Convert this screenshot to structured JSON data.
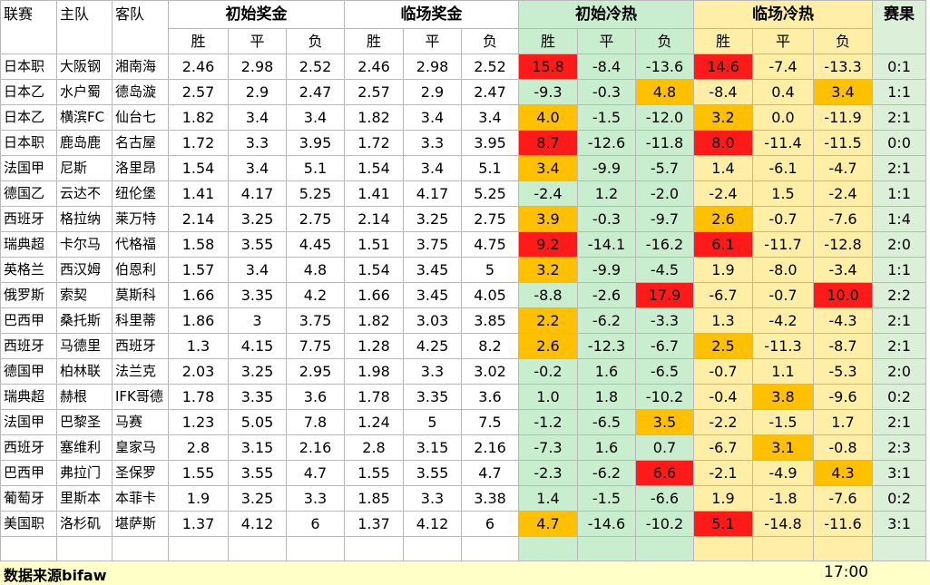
{
  "header": {
    "league": "联赛",
    "home": "主队",
    "away": "客队",
    "initial_odds": "初始奖金",
    "closing_odds": "临场奖金",
    "initial_heat": "初始冷热",
    "closing_heat": "临场冷热",
    "result": "赛果",
    "win": "胜",
    "draw": "平",
    "lose": "负"
  },
  "colors": {
    "red": "#ff1a1a",
    "orange": "#ffc000",
    "green_bg": "#c9eecf",
    "yellow_bg": "#ffeea6",
    "footer_bg": "#ffffc8"
  },
  "rows": [
    {
      "league": "日本职",
      "home": "大阪钢",
      "away": "湘南海",
      "io": [
        "2.46",
        "2.98",
        "2.52"
      ],
      "co": [
        "2.46",
        "2.98",
        "2.52"
      ],
      "ih": [
        "15.8",
        "-8.4",
        "-13.6"
      ],
      "ch": [
        "14.6",
        "-7.4",
        "-13.3"
      ],
      "result": "0:1",
      "ihc": [
        "r",
        "",
        ""
      ],
      "chc": [
        "r",
        "",
        ""
      ]
    },
    {
      "league": "日本乙",
      "home": "水户蜀",
      "away": "德岛漩",
      "io": [
        "2.57",
        "2.9",
        "2.47"
      ],
      "co": [
        "2.57",
        "2.9",
        "2.47"
      ],
      "ih": [
        "-9.3",
        "-0.3",
        "4.8"
      ],
      "ch": [
        "-8.4",
        "0.4",
        "3.4"
      ],
      "result": "1:1",
      "ihc": [
        "",
        "",
        "o"
      ],
      "chc": [
        "",
        "",
        "o"
      ]
    },
    {
      "league": "日本乙",
      "home": "横滨FC",
      "away": "仙台七",
      "io": [
        "1.82",
        "3.4",
        "3.4"
      ],
      "co": [
        "1.82",
        "3.4",
        "3.4"
      ],
      "ih": [
        "4.0",
        "-1.5",
        "-12.0"
      ],
      "ch": [
        "3.2",
        "0.0",
        "-11.9"
      ],
      "result": "2:1",
      "ihc": [
        "o",
        "",
        ""
      ],
      "chc": [
        "o",
        "",
        ""
      ]
    },
    {
      "league": "日本职",
      "home": "鹿岛鹿",
      "away": "名古屋",
      "io": [
        "1.72",
        "3.3",
        "3.95"
      ],
      "co": [
        "1.72",
        "3.3",
        "3.95"
      ],
      "ih": [
        "8.7",
        "-12.6",
        "-11.8"
      ],
      "ch": [
        "8.0",
        "-11.4",
        "-11.5"
      ],
      "result": "0:0",
      "ihc": [
        "r",
        "",
        ""
      ],
      "chc": [
        "r",
        "",
        ""
      ]
    },
    {
      "league": "法国甲",
      "home": "尼斯",
      "away": "洛里昂",
      "io": [
        "1.54",
        "3.4",
        "5.1"
      ],
      "co": [
        "1.54",
        "3.4",
        "5.1"
      ],
      "ih": [
        "3.4",
        "-9.9",
        "-5.7"
      ],
      "ch": [
        "1.4",
        "-6.1",
        "-4.7"
      ],
      "result": "2:1",
      "ihc": [
        "o",
        "",
        ""
      ],
      "chc": [
        "",
        "",
        ""
      ]
    },
    {
      "league": "德国乙",
      "home": "云达不",
      "away": "纽伦堡",
      "io": [
        "1.41",
        "4.17",
        "5.25"
      ],
      "co": [
        "1.41",
        "4.17",
        "5.25"
      ],
      "ih": [
        "-2.4",
        "1.2",
        "-2.0"
      ],
      "ch": [
        "-2.4",
        "1.5",
        "-2.4"
      ],
      "result": "1:1",
      "ihc": [
        "",
        "",
        ""
      ],
      "chc": [
        "",
        "",
        ""
      ]
    },
    {
      "league": "西班牙",
      "home": "格拉纳",
      "away": "莱万特",
      "io": [
        "2.14",
        "3.25",
        "2.75"
      ],
      "co": [
        "2.14",
        "3.25",
        "2.75"
      ],
      "ih": [
        "3.9",
        "-0.3",
        "-9.7"
      ],
      "ch": [
        "2.6",
        "-0.7",
        "-7.6"
      ],
      "result": "1:4",
      "ihc": [
        "o",
        "",
        ""
      ],
      "chc": [
        "o",
        "",
        ""
      ]
    },
    {
      "league": "瑞典超",
      "home": "卡尔马",
      "away": "代格福",
      "io": [
        "1.58",
        "3.55",
        "4.45"
      ],
      "co": [
        "1.51",
        "3.75",
        "4.75"
      ],
      "ih": [
        "9.2",
        "-14.1",
        "-16.2"
      ],
      "ch": [
        "6.1",
        "-11.7",
        "-12.8"
      ],
      "result": "2:0",
      "ihc": [
        "r",
        "",
        ""
      ],
      "chc": [
        "r",
        "",
        ""
      ]
    },
    {
      "league": "英格兰",
      "home": "西汉姆",
      "away": "伯恩利",
      "io": [
        "1.57",
        "3.4",
        "4.8"
      ],
      "co": [
        "1.54",
        "3.45",
        "5"
      ],
      "ih": [
        "3.2",
        "-9.9",
        "-4.5"
      ],
      "ch": [
        "1.9",
        "-8.0",
        "-3.4"
      ],
      "result": "1:1",
      "ihc": [
        "o",
        "",
        ""
      ],
      "chc": [
        "",
        "",
        ""
      ]
    },
    {
      "league": "俄罗斯",
      "home": "索契",
      "away": "莫斯科",
      "io": [
        "1.66",
        "3.35",
        "4.2"
      ],
      "co": [
        "1.66",
        "3.45",
        "4.05"
      ],
      "ih": [
        "-8.8",
        "-2.6",
        "17.9"
      ],
      "ch": [
        "-6.7",
        "-0.7",
        "10.0"
      ],
      "result": "2:2",
      "ihc": [
        "",
        "",
        "r"
      ],
      "chc": [
        "",
        "",
        "r"
      ]
    },
    {
      "league": "巴西甲",
      "home": "桑托斯",
      "away": "科里蒂",
      "io": [
        "1.86",
        "3",
        "3.75"
      ],
      "co": [
        "1.82",
        "3.03",
        "3.85"
      ],
      "ih": [
        "2.2",
        "-6.2",
        "-3.3"
      ],
      "ch": [
        "1.3",
        "-4.2",
        "-4.3"
      ],
      "result": "2:1",
      "ihc": [
        "o",
        "",
        ""
      ],
      "chc": [
        "",
        "",
        ""
      ]
    },
    {
      "league": "西班牙",
      "home": "马德里",
      "away": "西班牙",
      "io": [
        "1.3",
        "4.15",
        "7.75"
      ],
      "co": [
        "1.28",
        "4.25",
        "8.2"
      ],
      "ih": [
        "2.6",
        "-12.3",
        "-6.7"
      ],
      "ch": [
        "2.5",
        "-11.3",
        "-8.7"
      ],
      "result": "2:1",
      "ihc": [
        "o",
        "",
        ""
      ],
      "chc": [
        "o",
        "",
        ""
      ]
    },
    {
      "league": "德国甲",
      "home": "柏林联",
      "away": "法兰克",
      "io": [
        "2.03",
        "3.25",
        "2.95"
      ],
      "co": [
        "1.98",
        "3.3",
        "3.02"
      ],
      "ih": [
        "-0.2",
        "1.6",
        "-6.5"
      ],
      "ch": [
        "-0.7",
        "1.1",
        "-5.3"
      ],
      "result": "2:0",
      "ihc": [
        "",
        "",
        ""
      ],
      "chc": [
        "",
        "",
        ""
      ]
    },
    {
      "league": "瑞典超",
      "home": "赫根",
      "away": "IFK哥德",
      "io": [
        "1.78",
        "3.35",
        "3.6"
      ],
      "co": [
        "1.78",
        "3.35",
        "3.6"
      ],
      "ih": [
        "1.0",
        "1.8",
        "-10.2"
      ],
      "ch": [
        "-0.4",
        "3.8",
        "-9.6"
      ],
      "result": "0:2",
      "ihc": [
        "",
        "",
        ""
      ],
      "chc": [
        "",
        "o",
        ""
      ]
    },
    {
      "league": "法国甲",
      "home": "巴黎圣",
      "away": "马赛",
      "io": [
        "1.23",
        "5.05",
        "7.8"
      ],
      "co": [
        "1.24",
        "5",
        "7.5"
      ],
      "ih": [
        "-1.2",
        "-6.5",
        "3.5"
      ],
      "ch": [
        "-2.2",
        "-1.5",
        "1.7"
      ],
      "result": "2:1",
      "ihc": [
        "",
        "",
        "o"
      ],
      "chc": [
        "",
        "",
        ""
      ]
    },
    {
      "league": "西班牙",
      "home": "塞维利",
      "away": "皇家马",
      "io": [
        "2.8",
        "3.15",
        "2.16"
      ],
      "co": [
        "2.8",
        "3.15",
        "2.16"
      ],
      "ih": [
        "-7.3",
        "1.6",
        "0.7"
      ],
      "ch": [
        "-6.7",
        "3.1",
        "-0.8"
      ],
      "result": "2:3",
      "ihc": [
        "",
        "",
        ""
      ],
      "chc": [
        "",
        "o",
        ""
      ]
    },
    {
      "league": "巴西甲",
      "home": "弗拉门",
      "away": "圣保罗",
      "io": [
        "1.55",
        "3.55",
        "4.7"
      ],
      "co": [
        "1.55",
        "3.55",
        "4.7"
      ],
      "ih": [
        "-2.3",
        "-6.2",
        "6.6"
      ],
      "ch": [
        "-2.1",
        "-4.9",
        "4.3"
      ],
      "result": "3:1",
      "ihc": [
        "",
        "",
        "r"
      ],
      "chc": [
        "",
        "",
        "o"
      ]
    },
    {
      "league": "葡萄牙",
      "home": "里斯本",
      "away": "本菲卡",
      "io": [
        "1.9",
        "3.25",
        "3.3"
      ],
      "co": [
        "1.85",
        "3.3",
        "3.38"
      ],
      "ih": [
        "1.4",
        "-1.5",
        "-6.6"
      ],
      "ch": [
        "1.9",
        "-1.8",
        "-7.6"
      ],
      "result": "0:2",
      "ihc": [
        "",
        "",
        ""
      ],
      "chc": [
        "",
        "",
        ""
      ]
    },
    {
      "league": "美国职",
      "home": "洛杉矶",
      "away": "堪萨斯",
      "io": [
        "1.37",
        "4.12",
        "6"
      ],
      "co": [
        "1.37",
        "4.12",
        "6"
      ],
      "ih": [
        "4.7",
        "-14.6",
        "-10.2"
      ],
      "ch": [
        "5.1",
        "-14.8",
        "-11.6"
      ],
      "result": "3:1",
      "ihc": [
        "o",
        "",
        ""
      ],
      "chc": [
        "r",
        "",
        ""
      ]
    }
  ],
  "footer": {
    "source": "数据来源bifaw",
    "time": "17:00"
  }
}
